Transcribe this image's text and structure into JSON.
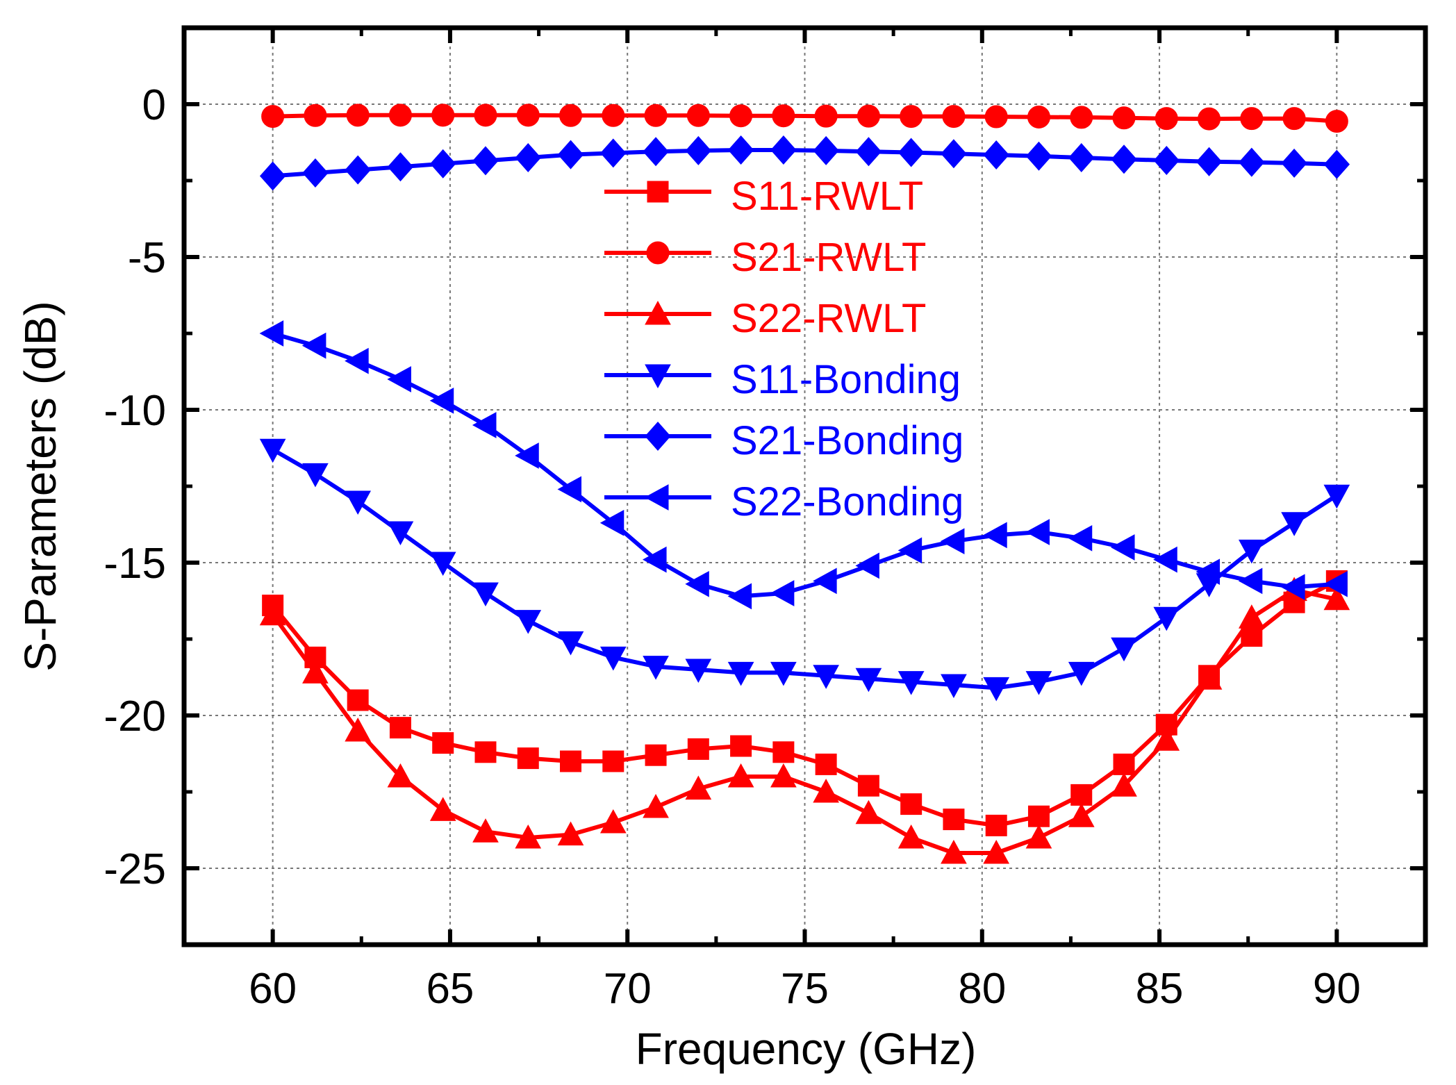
{
  "chart_data": {
    "type": "line",
    "title": "",
    "xlabel": "Frequency (GHz)",
    "ylabel": "S-Parameters (dB)",
    "xlim": [
      57.5,
      92.5
    ],
    "ylim": [
      -27.5,
      2.5
    ],
    "xticks": [
      60,
      65,
      70,
      75,
      80,
      85,
      90
    ],
    "yticks": [
      0,
      -5,
      -10,
      -15,
      -20,
      -25
    ],
    "xtick_labels": [
      "60",
      "65",
      "70",
      "75",
      "80",
      "85",
      "90"
    ],
    "ytick_labels": [
      "0",
      "-5",
      "-10",
      "-15",
      "-20",
      "-25"
    ],
    "grid": true,
    "legend_position": "center",
    "x": [
      60,
      61.2,
      62.4,
      63.6,
      64.8,
      66,
      67.2,
      68.4,
      69.6,
      70.8,
      72,
      73.2,
      74.4,
      75.6,
      76.8,
      78,
      79.2,
      80.4,
      81.6,
      82.8,
      84,
      85.2,
      86.4,
      87.6,
      88.8,
      90
    ],
    "series": [
      {
        "name": "S11-RWLT",
        "color": "#ff0000",
        "marker": "square",
        "values": [
          -16.4,
          -18.1,
          -19.5,
          -20.4,
          -20.9,
          -21.2,
          -21.4,
          -21.5,
          -21.5,
          -21.3,
          -21.1,
          -21.0,
          -21.2,
          -21.6,
          -22.3,
          -22.9,
          -23.4,
          -23.6,
          -23.3,
          -22.6,
          -21.6,
          -20.3,
          -18.7,
          -17.4,
          -16.3,
          -15.6
        ]
      },
      {
        "name": "S21-RWLT",
        "color": "#ff0000",
        "marker": "circle",
        "values": [
          -0.4,
          -0.37,
          -0.36,
          -0.36,
          -0.36,
          -0.36,
          -0.36,
          -0.37,
          -0.37,
          -0.37,
          -0.37,
          -0.38,
          -0.38,
          -0.39,
          -0.39,
          -0.4,
          -0.4,
          -0.41,
          -0.42,
          -0.43,
          -0.45,
          -0.47,
          -0.48,
          -0.47,
          -0.47,
          -0.56
        ]
      },
      {
        "name": "S22-RWLT",
        "color": "#ff0000",
        "marker": "triangle-up",
        "values": [
          -16.7,
          -18.6,
          -20.5,
          -22.0,
          -23.1,
          -23.8,
          -24.0,
          -23.9,
          -23.5,
          -23.0,
          -22.4,
          -22.0,
          -22.0,
          -22.5,
          -23.2,
          -24.0,
          -24.5,
          -24.5,
          -24.0,
          -23.3,
          -22.3,
          -20.8,
          -18.8,
          -16.8,
          -15.9,
          -16.2
        ]
      },
      {
        "name": "S11-Bonding",
        "color": "#0000ff",
        "marker": "triangle-down",
        "values": [
          -11.3,
          -12.1,
          -13.0,
          -14.0,
          -15.0,
          -16.0,
          -16.9,
          -17.6,
          -18.1,
          -18.4,
          -18.5,
          -18.6,
          -18.6,
          -18.7,
          -18.8,
          -18.9,
          -19.0,
          -19.1,
          -18.9,
          -18.6,
          -17.8,
          -16.8,
          -15.7,
          -14.6,
          -13.7,
          -12.8
        ]
      },
      {
        "name": "S21-Bonding",
        "color": "#0000ff",
        "marker": "diamond",
        "values": [
          -2.35,
          -2.25,
          -2.15,
          -2.05,
          -1.95,
          -1.85,
          -1.75,
          -1.65,
          -1.6,
          -1.55,
          -1.52,
          -1.5,
          -1.5,
          -1.52,
          -1.55,
          -1.58,
          -1.62,
          -1.66,
          -1.7,
          -1.75,
          -1.8,
          -1.84,
          -1.88,
          -1.9,
          -1.93,
          -1.97
        ]
      },
      {
        "name": "S22-Bonding",
        "color": "#0000ff",
        "marker": "triangle-left",
        "values": [
          -7.5,
          -7.9,
          -8.4,
          -9.0,
          -9.7,
          -10.5,
          -11.5,
          -12.6,
          -13.7,
          -14.9,
          -15.7,
          -16.1,
          -16.0,
          -15.6,
          -15.1,
          -14.6,
          -14.3,
          -14.1,
          -14.0,
          -14.2,
          -14.5,
          -14.9,
          -15.3,
          -15.6,
          -15.8,
          -15.7
        ]
      }
    ]
  }
}
